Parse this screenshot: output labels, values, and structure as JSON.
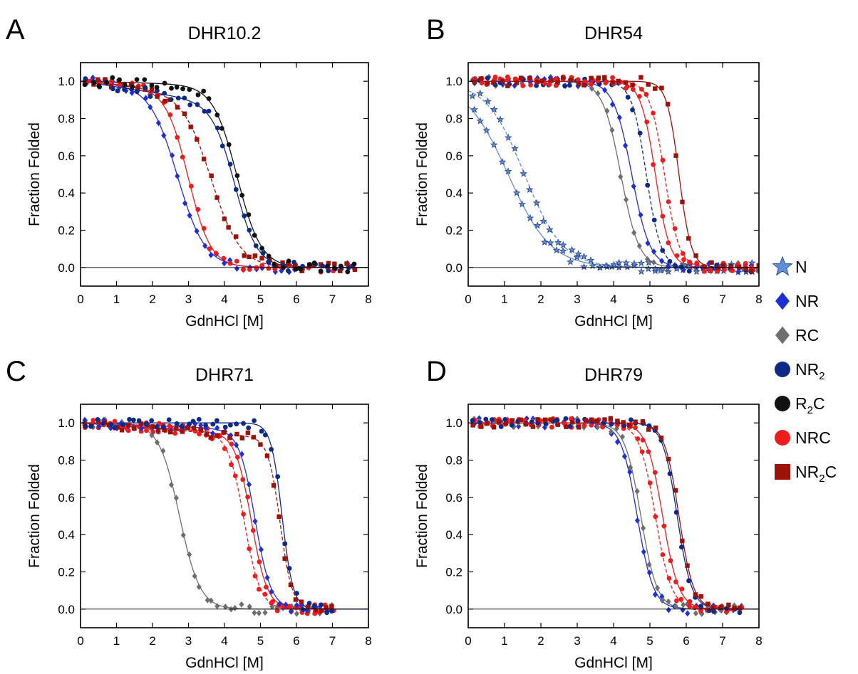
{
  "legend": {
    "entries": [
      {
        "id": "N",
        "label": "N",
        "sub": "",
        "suffix": "",
        "marker": "star",
        "color": "#5b8fd8"
      },
      {
        "id": "NR",
        "label": "NR",
        "sub": "",
        "suffix": "",
        "marker": "diamond",
        "color": "#1f2fd6"
      },
      {
        "id": "RC",
        "label": "RC",
        "sub": "",
        "suffix": "",
        "marker": "diamond",
        "color": "#6e6e6e"
      },
      {
        "id": "NR2",
        "label": "NR",
        "sub": "2",
        "suffix": "",
        "marker": "circle",
        "color": "#0c2a86"
      },
      {
        "id": "R2C",
        "label": "R",
        "sub": "2",
        "suffix": "C",
        "marker": "circle",
        "color": "#111111"
      },
      {
        "id": "NRC",
        "label": "NRC",
        "sub": "",
        "suffix": "",
        "marker": "circle",
        "color": "#ee1c1c"
      },
      {
        "id": "NR2C",
        "label": "NR",
        "sub": "2",
        "suffix": "C",
        "marker": "square",
        "color": "#9b1208"
      }
    ]
  },
  "chart_data": [
    {
      "panel": "A",
      "title": "DHR10.2",
      "type": "scatter",
      "xlabel": "GdnHCl [M]",
      "ylabel": "Fraction Folded",
      "xlim": [
        0,
        8
      ],
      "ylim": [
        -0.1,
        1.1
      ],
      "xticks": [
        0,
        1,
        2,
        3,
        4,
        5,
        6,
        7,
        8
      ],
      "yticks": [
        0.0,
        0.2,
        0.4,
        0.6,
        0.8,
        1.0
      ],
      "grid": false,
      "xmax_data": 7.6,
      "series": [
        {
          "name": "NR",
          "midpoint": 2.7,
          "m": 2.6,
          "baseline_slope": 0.02,
          "dashed": false
        },
        {
          "name": "NRC",
          "midpoint": 3.0,
          "m": 3.2,
          "baseline_slope": 0.03,
          "dashed": false
        },
        {
          "name": "NR2C",
          "midpoint": 3.65,
          "m": 2.5,
          "baseline_slope": 0.04,
          "dashed": true
        },
        {
          "name": "NR2",
          "midpoint": 4.3,
          "m": 3.2,
          "baseline_slope": 0.06,
          "dashed": false
        },
        {
          "name": "R2C",
          "midpoint": 4.35,
          "m": 3.0,
          "baseline_slope": 0.01,
          "dashed": false
        }
      ]
    },
    {
      "panel": "B",
      "title": "DHR54",
      "type": "scatter",
      "xlabel": "GdnHCl [M]",
      "ylabel": "Fraction Folded",
      "xlim": [
        0,
        8
      ],
      "ylim": [
        -0.1,
        1.1
      ],
      "xticks": [
        0,
        1,
        2,
        3,
        4,
        5,
        6,
        7,
        8
      ],
      "yticks": [
        0.0,
        0.2,
        0.4,
        0.6,
        0.8,
        1.0
      ],
      "grid": false,
      "xmax_data": 8.0,
      "series": [
        {
          "name": "N",
          "midpoint": 1.1,
          "m": 1.7,
          "baseline_slope": 0,
          "dashed": false
        },
        {
          "name": "N",
          "midpoint": 1.55,
          "m": 1.9,
          "baseline_slope": 0,
          "dashed": true
        },
        {
          "name": "RC",
          "midpoint": 4.2,
          "m": 4.0,
          "baseline_slope": 0,
          "dashed": false
        },
        {
          "name": "NR",
          "midpoint": 4.5,
          "m": 4.0,
          "baseline_slope": 0,
          "dashed": false
        },
        {
          "name": "NR2",
          "midpoint": 4.9,
          "m": 5.0,
          "baseline_slope": 0,
          "dashed": true
        },
        {
          "name": "NRC",
          "midpoint": 5.15,
          "m": 5.0,
          "baseline_slope": 0,
          "dashed": false
        },
        {
          "name": "NRC",
          "midpoint": 5.4,
          "m": 5.0,
          "baseline_slope": 0,
          "dashed": true
        },
        {
          "name": "NR2C",
          "midpoint": 5.8,
          "m": 6.0,
          "baseline_slope": 0,
          "dashed": false
        }
      ]
    },
    {
      "panel": "C",
      "title": "DHR71",
      "type": "scatter",
      "xlabel": "GdnHCl [M]",
      "ylabel": "Fraction Folded",
      "xlim": [
        0,
        8
      ],
      "ylim": [
        -0.1,
        1.1
      ],
      "xticks": [
        0,
        1,
        2,
        3,
        4,
        5,
        6,
        7,
        8
      ],
      "yticks": [
        0.0,
        0.2,
        0.4,
        0.6,
        0.8,
        1.0
      ],
      "grid": false,
      "xmax_data": 7.0,
      "series": [
        {
          "name": "RC",
          "midpoint": 2.75,
          "m": 3.5,
          "baseline_slope": 0,
          "dashed": false
        },
        {
          "name": "NRC",
          "midpoint": 4.55,
          "m": 4.5,
          "baseline_slope": 0.025,
          "dashed": true
        },
        {
          "name": "NRC",
          "midpoint": 4.75,
          "m": 4.5,
          "baseline_slope": 0.025,
          "dashed": false
        },
        {
          "name": "NR",
          "midpoint": 4.85,
          "m": 4.5,
          "baseline_slope": 0.015,
          "dashed": false
        },
        {
          "name": "NR2C",
          "midpoint": 5.55,
          "m": 6.0,
          "baseline_slope": 0.03,
          "dashed": true
        },
        {
          "name": "NR2",
          "midpoint": 5.6,
          "m": 6.5,
          "baseline_slope": 0,
          "dashed": false
        }
      ]
    },
    {
      "panel": "D",
      "title": "DHR79",
      "type": "scatter",
      "xlabel": "GdnHCl [M]",
      "ylabel": "Fraction Folded",
      "xlim": [
        0,
        8
      ],
      "ylim": [
        -0.1,
        1.1
      ],
      "xticks": [
        0,
        1,
        2,
        3,
        4,
        5,
        6,
        7,
        8
      ],
      "yticks": [
        0.0,
        0.2,
        0.4,
        0.6,
        0.8,
        1.0
      ],
      "grid": false,
      "xmax_data": 7.5,
      "series": [
        {
          "name": "NR",
          "midpoint": 4.65,
          "m": 4.5,
          "baseline_slope": 0,
          "dashed": false
        },
        {
          "name": "RC",
          "midpoint": 4.75,
          "m": 4.5,
          "baseline_slope": 0,
          "dashed": false
        },
        {
          "name": "NRC",
          "midpoint": 5.15,
          "m": 4.5,
          "baseline_slope": 0,
          "dashed": true
        },
        {
          "name": "NRC",
          "midpoint": 5.35,
          "m": 4.5,
          "baseline_slope": 0,
          "dashed": false
        },
        {
          "name": "NR2",
          "midpoint": 5.75,
          "m": 5.0,
          "baseline_slope": 0,
          "dashed": false
        },
        {
          "name": "NR2C",
          "midpoint": 5.8,
          "m": 5.0,
          "baseline_slope": 0,
          "dashed": false
        }
      ]
    }
  ]
}
